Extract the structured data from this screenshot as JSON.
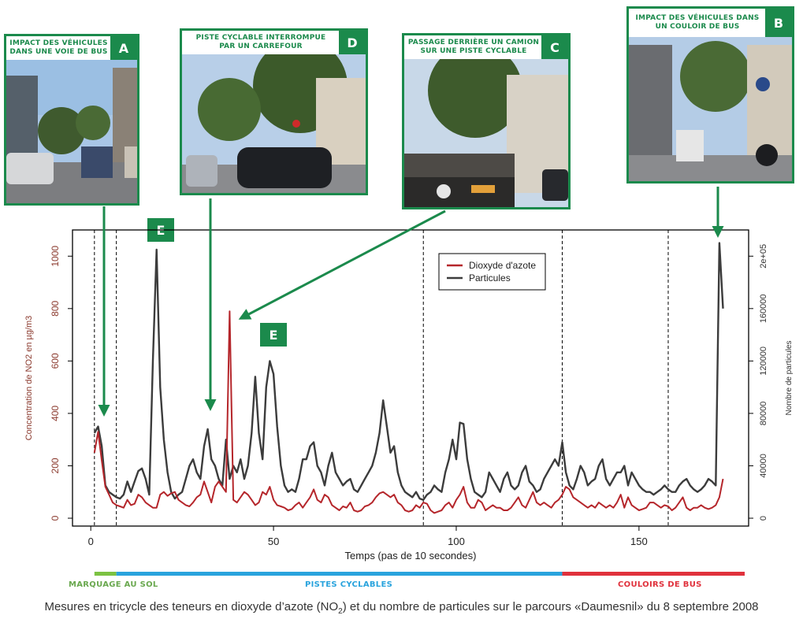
{
  "photos": [
    {
      "id": "A",
      "label_line1": "IMPACT DES VÉHICULES",
      "label_line2": "DANS UNE VOIE DE BUS",
      "letter": "A"
    },
    {
      "id": "D",
      "label_line1": "PISTE CYCLABLE INTERROMPUE",
      "label_line2": "PAR UN CARREFOUR",
      "letter": "D"
    },
    {
      "id": "C",
      "label_line1": "PASSAGE DERRIÈRE UN CAMION",
      "label_line2": "SUR UNE PISTE CYCLABLE",
      "letter": "C"
    },
    {
      "id": "B",
      "label_line1": "IMPACT DES VÉHICULES DANS",
      "label_line2": "UN COULOIR DE BUS",
      "letter": "B"
    }
  ],
  "badges": {
    "e1": "E",
    "e2": "E"
  },
  "colors": {
    "green": "#1b8a4c",
    "no2": "#b5262b",
    "particles": "#3c3c3c",
    "seg_sol": "#7cc242",
    "seg_piste": "#29a3dd",
    "seg_bus": "#e0313c"
  },
  "segments": [
    {
      "label": "MARQUAGE AU SOL",
      "color": "#7cc242",
      "label_color": "#6aa84f"
    },
    {
      "label": "PISTES CYCLABLES",
      "color": "#29a3dd",
      "label_color": "#29a3dd"
    },
    {
      "label": "COULOIRS DE BUS",
      "color": "#e0313c",
      "label_color": "#e0313c"
    }
  ],
  "caption": {
    "before": "Mesures en tricycle des teneurs en dioxyde d’azote (NO",
    "sub": "2",
    "after": ") et du nombre de particules sur le parcours «Daumesnil» du 8 septembre 2008"
  },
  "chart_data": {
    "type": "line",
    "xlabel": "Temps (pas de 10 secondes)",
    "ylabel": "Concentration de NO2 en µg/m3",
    "ylabel2": "Nombre de particules",
    "xlim": [
      -5,
      180
    ],
    "ylim": [
      -30,
      1100
    ],
    "ylim2": [
      -6000,
      220000
    ],
    "xticks": [
      0,
      50,
      100,
      150
    ],
    "yticks": [
      0,
      200,
      400,
      600,
      800,
      1000
    ],
    "yticks2_values": [
      0,
      40000,
      80000,
      120000,
      160000,
      200000
    ],
    "yticks2_labels": [
      "0",
      "40000",
      "80000",
      "120000",
      "160000",
      "2e+05"
    ],
    "vlines": [
      1,
      7,
      91,
      129,
      158
    ],
    "legend_position": "top-center",
    "series": [
      {
        "name": "Dioxyde d'azote",
        "axis": "left",
        "color": "#b5262b",
        "x": [
          1,
          2,
          3,
          4,
          5,
          6,
          7,
          8,
          9,
          10,
          11,
          12,
          13,
          14,
          15,
          16,
          17,
          18,
          19,
          20,
          21,
          22,
          23,
          24,
          25,
          26,
          27,
          28,
          29,
          30,
          31,
          32,
          33,
          34,
          35,
          36,
          37,
          38,
          39,
          40,
          41,
          42,
          43,
          44,
          45,
          46,
          47,
          48,
          49,
          50,
          51,
          52,
          53,
          54,
          55,
          56,
          57,
          58,
          59,
          60,
          61,
          62,
          63,
          64,
          65,
          66,
          67,
          68,
          69,
          70,
          71,
          72,
          73,
          74,
          75,
          76,
          77,
          78,
          79,
          80,
          81,
          82,
          83,
          84,
          85,
          86,
          87,
          88,
          89,
          90,
          91,
          92,
          93,
          94,
          95,
          96,
          97,
          98,
          99,
          100,
          101,
          102,
          103,
          104,
          105,
          106,
          107,
          108,
          109,
          110,
          111,
          112,
          113,
          114,
          115,
          116,
          117,
          118,
          119,
          120,
          121,
          122,
          123,
          124,
          125,
          126,
          127,
          128,
          129,
          130,
          131,
          132,
          133,
          134,
          135,
          136,
          137,
          138,
          139,
          140,
          141,
          142,
          143,
          144,
          145,
          146,
          147,
          148,
          149,
          150,
          151,
          152,
          153,
          154,
          155,
          156,
          157,
          158,
          159,
          160,
          161,
          162,
          163,
          164,
          165,
          166,
          167,
          168,
          169,
          170,
          171,
          172,
          173
        ],
        "y": [
          250,
          330,
          220,
          120,
          90,
          60,
          50,
          45,
          40,
          70,
          50,
          55,
          90,
          80,
          60,
          50,
          40,
          40,
          90,
          100,
          85,
          95,
          100,
          70,
          60,
          50,
          45,
          60,
          80,
          90,
          140,
          100,
          60,
          120,
          140,
          120,
          100,
          790,
          70,
          60,
          80,
          100,
          90,
          70,
          50,
          60,
          100,
          90,
          120,
          70,
          50,
          45,
          40,
          30,
          35,
          50,
          60,
          40,
          60,
          80,
          110,
          70,
          60,
          90,
          80,
          50,
          40,
          30,
          45,
          40,
          60,
          30,
          25,
          30,
          45,
          50,
          60,
          80,
          95,
          100,
          90,
          80,
          90,
          60,
          50,
          30,
          25,
          30,
          50,
          40,
          60,
          55,
          30,
          20,
          25,
          30,
          50,
          60,
          40,
          70,
          90,
          120,
          60,
          40,
          40,
          70,
          60,
          30,
          40,
          50,
          40,
          40,
          30,
          30,
          40,
          60,
          80,
          50,
          40,
          70,
          100,
          60,
          50,
          60,
          50,
          40,
          60,
          70,
          90,
          120,
          110,
          80,
          70,
          60,
          50,
          40,
          50,
          40,
          60,
          50,
          40,
          50,
          40,
          60,
          90,
          40,
          80,
          50,
          40,
          30,
          35,
          40,
          60,
          60,
          50,
          40,
          50,
          45,
          30,
          40,
          60,
          80,
          40,
          30,
          40,
          40,
          50,
          40,
          35,
          40,
          50,
          80,
          150
        ]
      },
      {
        "name": "Particules",
        "axis": "right",
        "color": "#3c3c3c",
        "x": [
          1,
          2,
          3,
          4,
          5,
          6,
          7,
          8,
          9,
          10,
          11,
          12,
          13,
          14,
          15,
          16,
          17,
          18,
          19,
          20,
          21,
          22,
          23,
          24,
          25,
          26,
          27,
          28,
          29,
          30,
          31,
          32,
          33,
          34,
          35,
          36,
          37,
          38,
          39,
          40,
          41,
          42,
          43,
          44,
          45,
          46,
          47,
          48,
          49,
          50,
          51,
          52,
          53,
          54,
          55,
          56,
          57,
          58,
          59,
          60,
          61,
          62,
          63,
          64,
          65,
          66,
          67,
          68,
          69,
          70,
          71,
          72,
          73,
          74,
          75,
          76,
          77,
          78,
          79,
          80,
          81,
          82,
          83,
          84,
          85,
          86,
          87,
          88,
          89,
          90,
          91,
          92,
          93,
          94,
          95,
          96,
          97,
          98,
          99,
          100,
          101,
          102,
          103,
          104,
          105,
          106,
          107,
          108,
          109,
          110,
          111,
          112,
          113,
          114,
          115,
          116,
          117,
          118,
          119,
          120,
          121,
          122,
          123,
          124,
          125,
          126,
          127,
          128,
          129,
          130,
          131,
          132,
          133,
          134,
          135,
          136,
          137,
          138,
          139,
          140,
          141,
          142,
          143,
          144,
          145,
          146,
          147,
          148,
          149,
          150,
          151,
          152,
          153,
          154,
          155,
          156,
          157,
          158,
          159,
          160,
          161,
          162,
          163,
          164,
          165,
          166,
          167,
          168,
          169,
          170,
          171,
          172,
          173
        ],
        "y": [
          65000,
          70000,
          55000,
          25000,
          20000,
          18000,
          16000,
          15000,
          18000,
          28000,
          20000,
          28000,
          36000,
          38000,
          30000,
          18000,
          120000,
          205000,
          100000,
          60000,
          35000,
          20000,
          15000,
          18000,
          20000,
          30000,
          40000,
          45000,
          35000,
          30000,
          55000,
          68000,
          45000,
          40000,
          30000,
          25000,
          60000,
          30000,
          40000,
          35000,
          45000,
          30000,
          40000,
          65000,
          108000,
          65000,
          45000,
          100000,
          120000,
          110000,
          70000,
          40000,
          25000,
          20000,
          22000,
          20000,
          30000,
          45000,
          45000,
          55000,
          58000,
          40000,
          35000,
          25000,
          40000,
          50000,
          35000,
          30000,
          25000,
          28000,
          30000,
          22000,
          20000,
          25000,
          30000,
          35000,
          40000,
          50000,
          65000,
          90000,
          70000,
          50000,
          55000,
          35000,
          25000,
          20000,
          18000,
          16000,
          20000,
          15000,
          14000,
          18000,
          20000,
          25000,
          22000,
          20000,
          35000,
          45000,
          60000,
          45000,
          73000,
          72000,
          45000,
          30000,
          20000,
          18000,
          16000,
          20000,
          35000,
          30000,
          25000,
          20000,
          30000,
          35000,
          25000,
          22000,
          25000,
          35000,
          40000,
          28000,
          25000,
          20000,
          22000,
          30000,
          35000,
          40000,
          45000,
          40000,
          58000,
          35000,
          25000,
          22000,
          30000,
          40000,
          35000,
          25000,
          28000,
          30000,
          40000,
          45000,
          30000,
          25000,
          30000,
          35000,
          35000,
          40000,
          25000,
          35000,
          30000,
          25000,
          22000,
          20000,
          20000,
          18000,
          20000,
          22000,
          25000,
          22000,
          20000,
          20000,
          25000,
          28000,
          30000,
          25000,
          22000,
          20000,
          22000,
          25000,
          30000,
          28000,
          25000,
          210000,
          160000
        ]
      }
    ]
  }
}
